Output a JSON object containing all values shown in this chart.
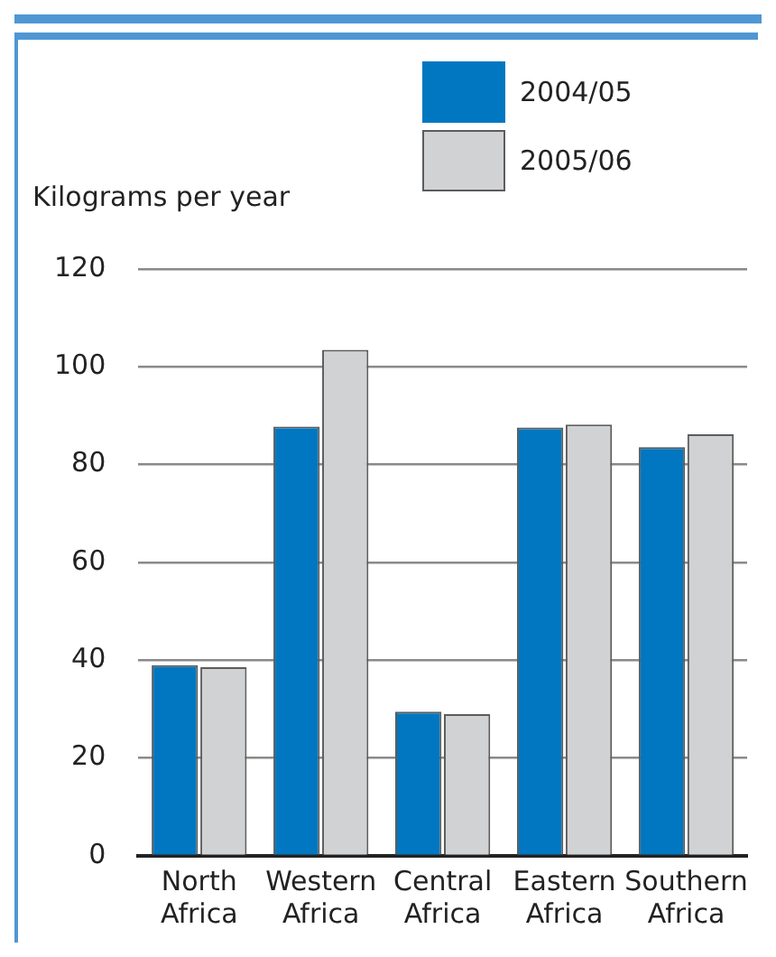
{
  "chart_data": {
    "type": "bar",
    "ylabel": "Kilograms per year",
    "categories": [
      "North Africa",
      "Western Africa",
      "Central Africa",
      "Eastern Africa",
      "Southern Africa"
    ],
    "series": [
      {
        "name": "2004/05",
        "color": "#0077c0",
        "values": [
          39.0,
          87.8,
          29.5,
          87.6,
          83.6
        ]
      },
      {
        "name": "2005/06",
        "color": "#d1d2d4",
        "values": [
          38.6,
          103.5,
          29.0,
          88.2,
          86.2
        ]
      }
    ],
    "ylim": [
      0,
      120
    ],
    "yticks": [
      0,
      20,
      40,
      60,
      80,
      100,
      120
    ],
    "grid": "y",
    "legend": "top"
  }
}
